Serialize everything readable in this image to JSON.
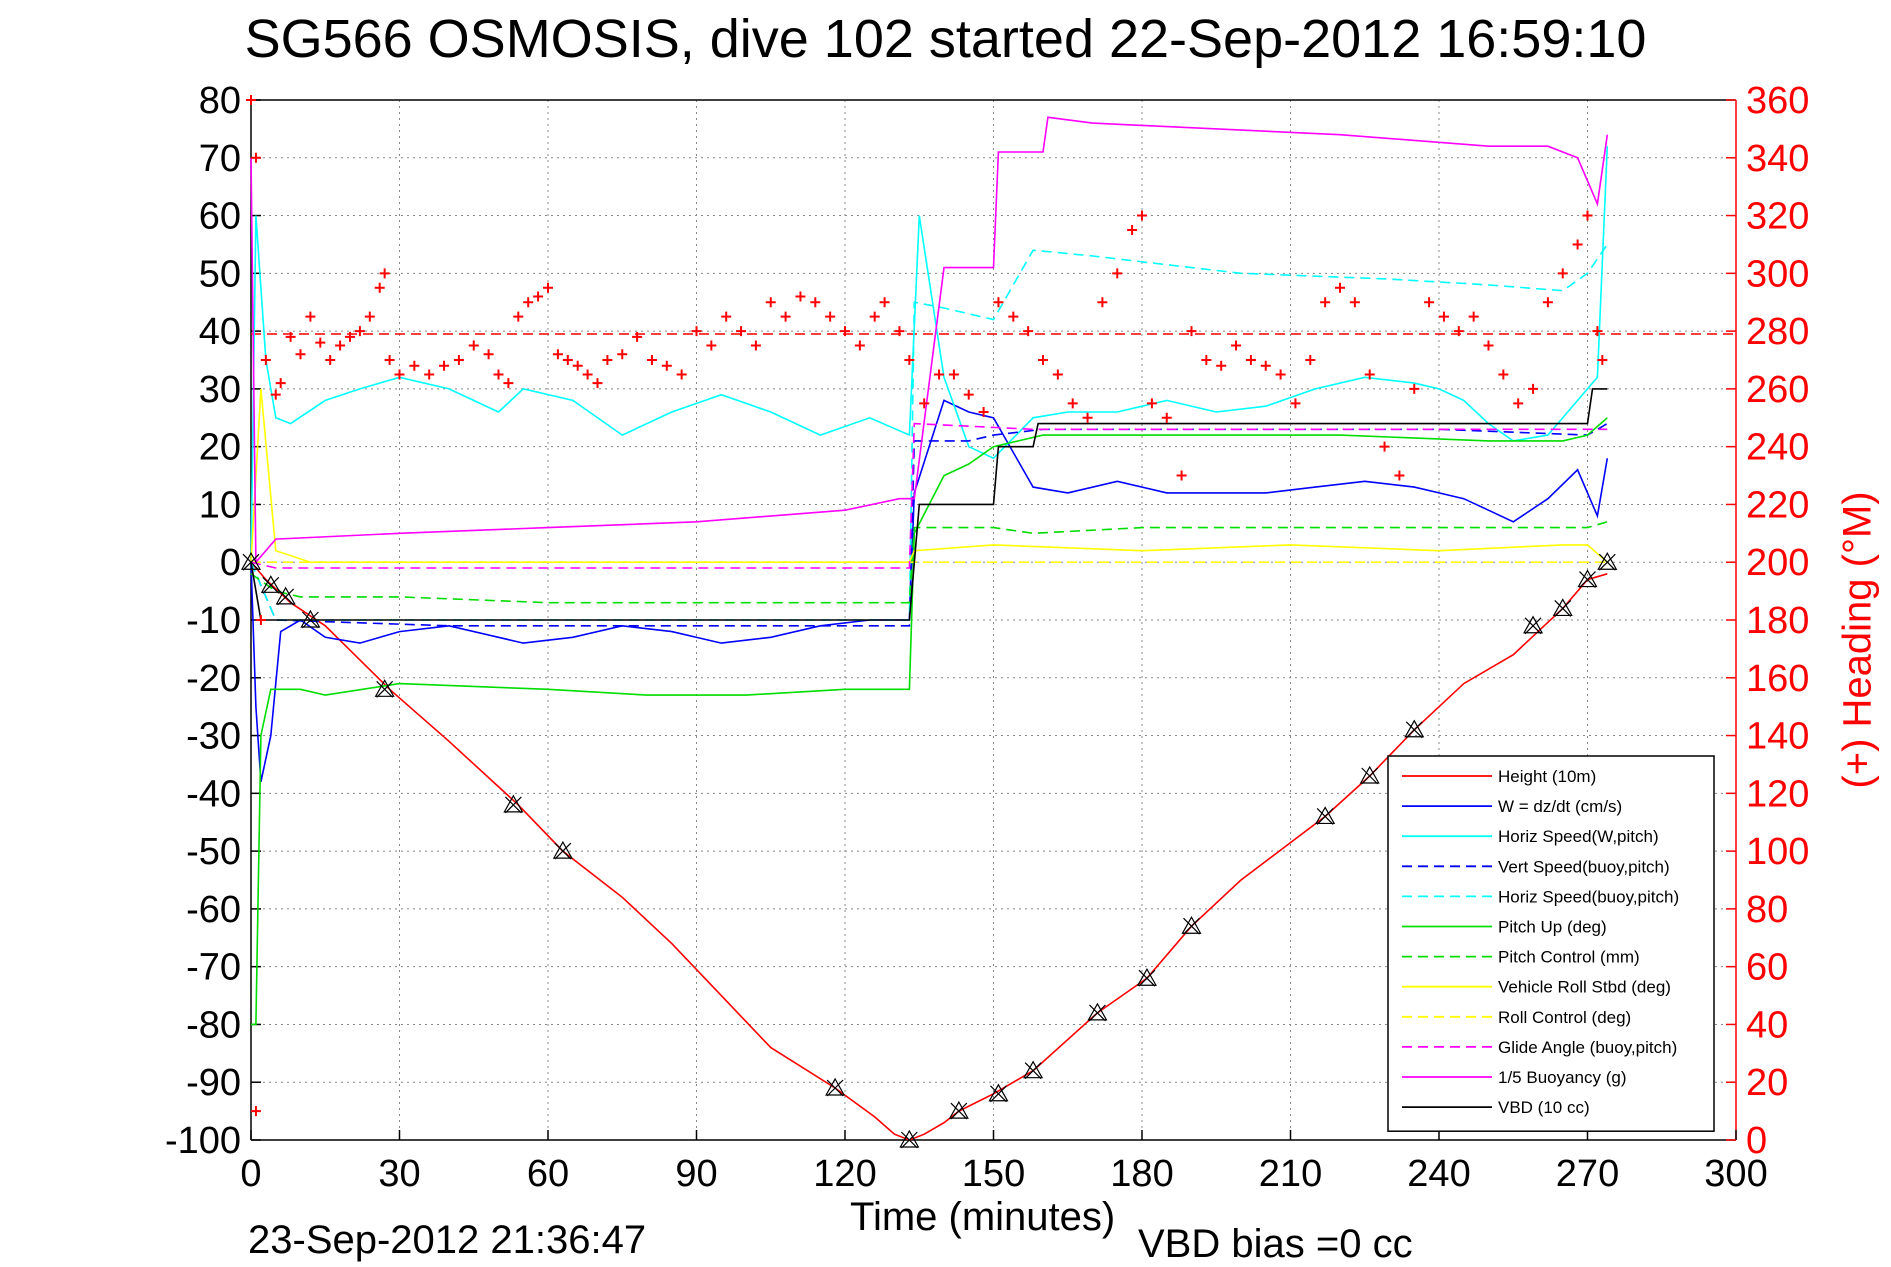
{
  "title": "SG566 OSMOSIS, dive 102 started 22-Sep-2012 16:59:10",
  "footer": {
    "timestamp": "23-Sep-2012 21:36:47",
    "vbd_bias": "VBD bias =0 cc"
  },
  "colors": {
    "height": "#ff0000",
    "w": "#0000ff",
    "horiz_speed": "#00ffff",
    "pitch": "#00dd00",
    "roll": "#ffff00",
    "glide": "#ff00ff",
    "buoyancy": "#ff00ff",
    "vbd": "#000000",
    "heading": "#ff0000"
  },
  "chart_data": {
    "type": "line",
    "title": "SG566 OSMOSIS, dive 102 started 22-Sep-2012 16:59:10",
    "xlabel": "Time (minutes)",
    "ylabel": "",
    "y2label": "(+) Heading (°M)",
    "xlim": [
      0,
      300
    ],
    "ylim": [
      -100,
      80
    ],
    "y2lim": [
      0,
      360
    ],
    "xticks": [
      0,
      30,
      60,
      90,
      120,
      150,
      180,
      210,
      240,
      270,
      300
    ],
    "yticks": [
      80,
      70,
      60,
      50,
      40,
      30,
      20,
      10,
      0,
      -10,
      -20,
      -30,
      -40,
      -50,
      -60,
      -70,
      -80,
      -90,
      -100
    ],
    "y2ticks": [
      360,
      340,
      320,
      300,
      280,
      260,
      240,
      220,
      200,
      180,
      160,
      140,
      120,
      100,
      80,
      60,
      40,
      20,
      0
    ],
    "grid": true,
    "legend_position": "lower-right",
    "heading_target": 279,
    "series": [
      {
        "name": "Height (10m)",
        "style": "solid",
        "color": "#ff0000",
        "axis": "left",
        "x": [
          0,
          3,
          8,
          15,
          28,
          40,
          54,
          63,
          75,
          85,
          95,
          105,
          118,
          126,
          130,
          133,
          136,
          140,
          143,
          150,
          158,
          171,
          181,
          190,
          200,
          217,
          226,
          235,
          245,
          255,
          260,
          265,
          270,
          274
        ],
        "values": [
          0,
          -3,
          -7,
          -11,
          -22,
          -31,
          -42,
          -50,
          -58,
          -66,
          -75,
          -84,
          -91,
          -96,
          -99,
          -100,
          -99,
          -97,
          -95,
          -92,
          -88,
          -78,
          -72,
          -63,
          -55,
          -44,
          -37,
          -29,
          -21,
          -16,
          -12,
          -8,
          -3,
          -2
        ]
      },
      {
        "name": "W = dz/dt (cm/s)",
        "style": "solid",
        "color": "#0000ff",
        "axis": "left",
        "x": [
          0,
          1,
          2,
          4,
          6,
          10,
          15,
          22,
          30,
          40,
          50,
          55,
          65,
          75,
          85,
          95,
          105,
          115,
          125,
          133,
          134,
          140,
          145,
          150,
          158,
          165,
          175,
          185,
          195,
          205,
          215,
          225,
          235,
          240,
          245,
          250,
          255,
          262,
          268,
          272,
          274
        ],
        "values": [
          0,
          -25,
          -38,
          -30,
          -12,
          -10,
          -13,
          -14,
          -12,
          -11,
          -13,
          -14,
          -13,
          -11,
          -12,
          -14,
          -13,
          -11,
          -10,
          -10,
          12,
          28,
          26,
          25,
          13,
          12,
          14,
          12,
          12,
          12,
          13,
          14,
          13,
          12,
          11,
          9,
          7,
          11,
          16,
          8,
          18
        ]
      },
      {
        "name": "Horiz Speed(W,pitch)",
        "style": "solid",
        "color": "#00ffff",
        "axis": "left",
        "x": [
          0,
          1,
          3,
          5,
          8,
          15,
          22,
          30,
          40,
          50,
          55,
          65,
          75,
          85,
          95,
          105,
          115,
          125,
          133,
          135,
          140,
          145,
          150,
          158,
          165,
          175,
          185,
          195,
          205,
          215,
          225,
          235,
          240,
          245,
          250,
          255,
          262,
          268,
          272,
          274
        ],
        "values": [
          0,
          60,
          35,
          25,
          24,
          28,
          30,
          32,
          30,
          26,
          30,
          28,
          22,
          26,
          29,
          26,
          22,
          25,
          22,
          60,
          32,
          20,
          18,
          25,
          26,
          26,
          28,
          26,
          27,
          30,
          32,
          31,
          30,
          28,
          24,
          21,
          22,
          28,
          32,
          72
        ]
      },
      {
        "name": "Vert Speed(buoy,pitch)",
        "style": "dashed",
        "color": "#0000ff",
        "axis": "left",
        "x": [
          0,
          5,
          40,
          90,
          133,
          134,
          145,
          150,
          160,
          200,
          240,
          270,
          274
        ],
        "values": [
          0,
          -10,
          -11,
          -11,
          -11,
          21,
          21,
          22,
          23,
          23,
          23,
          22,
          24
        ]
      },
      {
        "name": "Horiz Speed(buoy,pitch)",
        "style": "dashed",
        "color": "#00ffff",
        "axis": "left",
        "x": [
          0,
          5,
          133,
          134,
          140,
          150,
          158,
          170,
          180,
          190,
          200,
          230,
          250,
          265,
          270,
          274
        ],
        "values": [
          0,
          -10,
          -10,
          45,
          44,
          42,
          54,
          53,
          52,
          51,
          50,
          49,
          48,
          47,
          50,
          55
        ]
      },
      {
        "name": "Pitch Up (deg)",
        "style": "solid",
        "color": "#00dd00",
        "axis": "left",
        "x": [
          0,
          1,
          2,
          4,
          8,
          10,
          15,
          30,
          60,
          80,
          100,
          120,
          133,
          134,
          140,
          145,
          150,
          160,
          180,
          200,
          220,
          250,
          265,
          270,
          274
        ],
        "values": [
          -80,
          -80,
          -30,
          -22,
          -22,
          -22,
          -23,
          -21,
          -22,
          -23,
          -23,
          -22,
          -22,
          5,
          15,
          17,
          20,
          22,
          22,
          22,
          22,
          21,
          21,
          22,
          25
        ]
      },
      {
        "name": "Pitch Control (mm)",
        "style": "dashed",
        "color": "#00dd00",
        "axis": "left",
        "x": [
          0,
          5,
          10,
          30,
          60,
          133,
          134,
          150,
          158,
          180,
          190,
          215,
          270,
          274
        ],
        "values": [
          -2,
          -5,
          -6,
          -6,
          -7,
          -7,
          6,
          6,
          5,
          6,
          6,
          6,
          6,
          7
        ]
      },
      {
        "name": "Vehicle Roll Stbd (deg)",
        "style": "solid",
        "color": "#ffff00",
        "axis": "left",
        "x": [
          0,
          2,
          5,
          12,
          30,
          60,
          90,
          120,
          133,
          134,
          150,
          180,
          210,
          240,
          265,
          270,
          274
        ],
        "values": [
          0,
          30,
          2,
          0,
          0,
          0,
          0,
          0,
          0,
          2,
          3,
          2,
          3,
          2,
          3,
          3,
          0
        ]
      },
      {
        "name": "Roll Control (deg)",
        "style": "dashed",
        "color": "#ffff00",
        "axis": "left",
        "x": [
          0,
          3,
          133,
          134,
          274
        ],
        "values": [
          0,
          0,
          0,
          0,
          0
        ]
      },
      {
        "name": "Glide Angle (buoy,pitch)",
        "style": "dashed",
        "color": "#ff00ff",
        "axis": "left",
        "x": [
          0,
          5,
          133,
          134,
          158,
          274
        ],
        "values": [
          0,
          -1,
          -1,
          24,
          23,
          23
        ]
      },
      {
        "name": "1/5 Buoyancy (g)",
        "style": "solid",
        "color": "#ff00ff",
        "axis": "left",
        "x": [
          0,
          1,
          5,
          30,
          60,
          90,
          120,
          131,
          134,
          140,
          150,
          151,
          160,
          161,
          170,
          220,
          250,
          262,
          268,
          272,
          274
        ],
        "values": [
          70,
          0,
          4,
          5,
          6,
          7,
          9,
          11,
          11,
          51,
          51,
          71,
          71,
          77,
          76,
          74,
          72,
          72,
          70,
          62,
          74
        ]
      },
      {
        "name": "VBD (10 cc)",
        "style": "solid",
        "color": "#000000",
        "axis": "left",
        "x": [
          0,
          2,
          30,
          60,
          90,
          120,
          133,
          135,
          140,
          150,
          151,
          158,
          159,
          200,
          250,
          255,
          270,
          271,
          274
        ],
        "values": [
          0,
          -10,
          -10,
          -10,
          -10,
          -10,
          -10,
          10,
          10,
          10,
          20,
          20,
          24,
          24,
          24,
          24,
          24,
          30,
          30
        ]
      }
    ],
    "heading_samples": {
      "name": "Heading",
      "marker": "+",
      "color": "#ff0000",
      "axis": "right",
      "x": [
        0,
        1,
        1,
        2,
        3,
        5,
        6,
        8,
        10,
        12,
        14,
        16,
        18,
        20,
        22,
        24,
        26,
        27,
        28,
        30,
        33,
        36,
        39,
        42,
        45,
        48,
        50,
        52,
        54,
        56,
        58,
        60,
        62,
        64,
        66,
        68,
        70,
        72,
        75,
        78,
        81,
        84,
        87,
        90,
        93,
        96,
        99,
        102,
        105,
        108,
        111,
        114,
        117,
        120,
        123,
        126,
        128,
        131,
        133,
        136,
        139,
        142,
        145,
        148,
        151,
        154,
        157,
        160,
        163,
        166,
        169,
        172,
        175,
        178,
        180,
        182,
        185,
        188,
        190,
        193,
        196,
        199,
        202,
        205,
        208,
        211,
        214,
        217,
        220,
        223,
        226,
        229,
        232,
        235,
        238,
        241,
        244,
        247,
        250,
        253,
        256,
        259,
        262,
        265,
        268,
        270,
        272,
        273
      ],
      "values": [
        360,
        340,
        10,
        180,
        270,
        258,
        262,
        278,
        272,
        285,
        276,
        270,
        275,
        278,
        280,
        285,
        295,
        300,
        270,
        265,
        268,
        265,
        268,
        270,
        275,
        272,
        265,
        262,
        285,
        290,
        292,
        295,
        272,
        270,
        268,
        265,
        262,
        270,
        272,
        278,
        270,
        268,
        265,
        280,
        275,
        285,
        280,
        275,
        290,
        285,
        292,
        290,
        285,
        280,
        275,
        285,
        290,
        280,
        270,
        255,
        265,
        265,
        258,
        252,
        290,
        285,
        280,
        270,
        265,
        255,
        250,
        290,
        300,
        315,
        320,
        255,
        250,
        230,
        280,
        270,
        268,
        275,
        270,
        268,
        265,
        255,
        270,
        290,
        295,
        290,
        265,
        240,
        230,
        260,
        290,
        285,
        280,
        285,
        275,
        265,
        255,
        260,
        290,
        300,
        310,
        320,
        280,
        270
      ]
    },
    "markers": {
      "x": [
        0,
        4,
        7,
        12,
        27,
        53,
        63,
        118,
        133,
        143,
        151,
        158,
        171,
        181,
        190,
        217,
        226,
        235,
        259,
        265,
        270,
        274
      ],
      "values": [
        0,
        -4,
        -6,
        -10,
        -22,
        -42,
        -50,
        -91,
        -100,
        -95,
        -92,
        -88,
        -78,
        -72,
        -63,
        -44,
        -37,
        -29,
        -11,
        -8,
        -3,
        0
      ]
    }
  }
}
